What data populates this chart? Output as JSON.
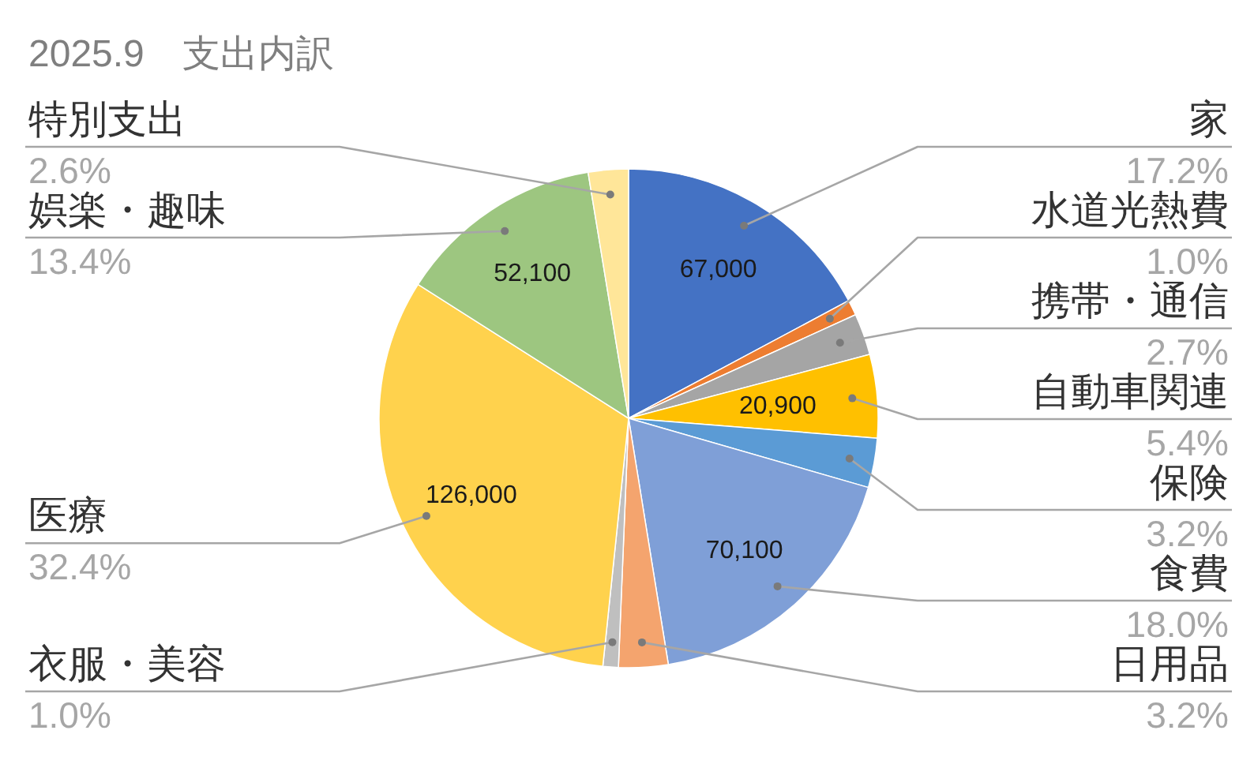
{
  "chart_data": {
    "type": "pie",
    "title": "2025.9　支出内訳",
    "categories": [
      "家",
      "水道光熱費",
      "携帯・通信",
      "自動車関連",
      "保険",
      "食費",
      "日用品",
      "衣服・美容",
      "医療",
      "娯楽・趣味",
      "特別支出"
    ],
    "values": [
      17.2,
      1.0,
      2.7,
      5.4,
      3.2,
      18.0,
      3.2,
      1.0,
      32.4,
      13.4,
      2.6
    ],
    "colors": [
      "#4472c4",
      "#ed7d31",
      "#a5a5a5",
      "#ffc000",
      "#5b9bd5",
      "#7f9fd7",
      "#f4a46e",
      "#bfbfbf",
      "#ffd24d",
      "#9dc680",
      "#ffe699"
    ],
    "value_labels": [
      "17.2%",
      "1.0%",
      "2.7%",
      "5.4%",
      "3.2%",
      "18.0%",
      "3.2%",
      "1.0%",
      "32.4%",
      "13.4%",
      "2.6%"
    ],
    "annotations": [
      {
        "text": "67,000",
        "x": "家"
      },
      {
        "text": "20,900",
        "x": "自動車関連"
      },
      {
        "text": "70,100",
        "x": "食費"
      },
      {
        "text": "126,000",
        "x": "医療"
      },
      {
        "text": "52,100",
        "x": "娯楽・趣味"
      }
    ]
  }
}
